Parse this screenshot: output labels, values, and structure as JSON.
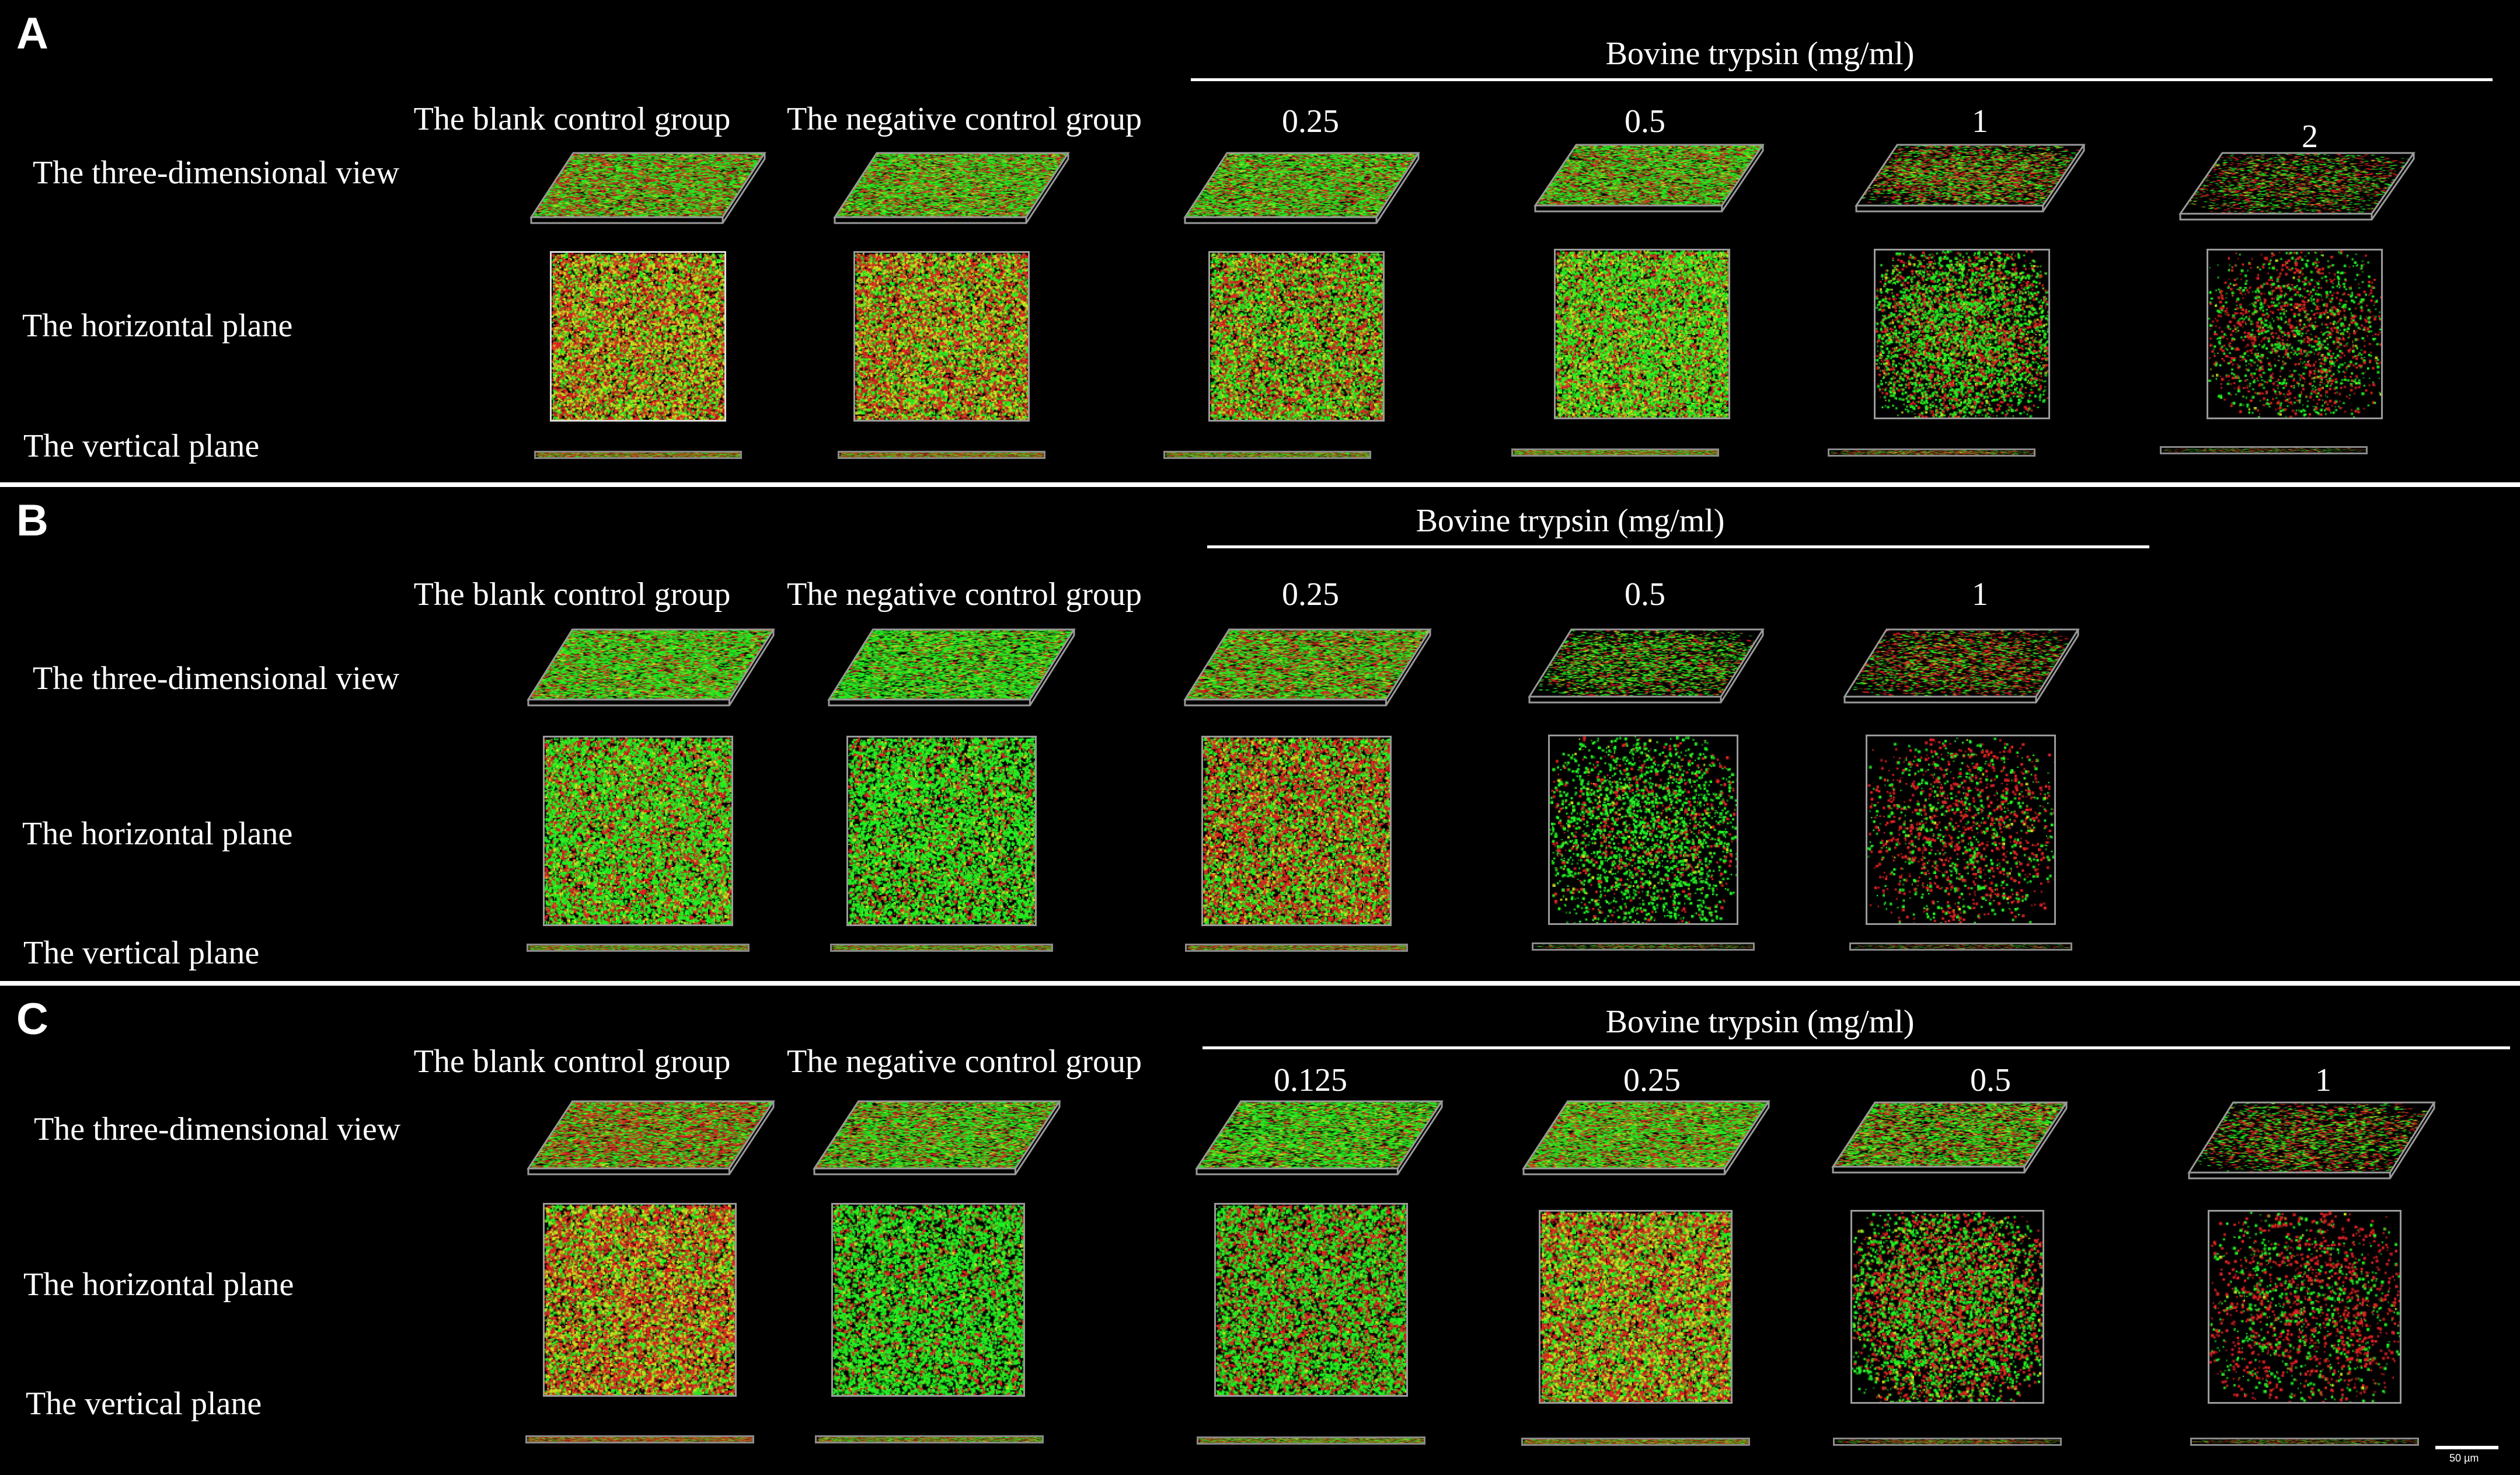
{
  "panels": [
    {
      "letter": "A",
      "header": "Bovine trypsin (mg/ml)",
      "col_blank": "The blank control group",
      "col_negative": "The negative control group",
      "concentrations": [
        "0.25",
        "0.5",
        "1",
        "2"
      ],
      "row_3d": "The three-dimensional view",
      "row_horizontal": "The horizontal plane",
      "row_vertical": "The vertical plane"
    },
    {
      "letter": "B",
      "header": "Bovine trypsin (mg/ml)",
      "col_blank": "The blank control group",
      "col_negative": "The negative control group",
      "concentrations": [
        "0.25",
        "0.5",
        "1"
      ],
      "row_3d": "The three-dimensional view",
      "row_horizontal": "The horizontal plane",
      "row_vertical": "The vertical plane"
    },
    {
      "letter": "C",
      "header": "Bovine trypsin (mg/ml)",
      "col_blank": "The blank control group",
      "col_negative": "The negative control group",
      "concentrations": [
        "0.125",
        "0.25",
        "0.5",
        "1"
      ],
      "row_3d": "The three-dimensional view",
      "row_horizontal": "The horizontal plane",
      "row_vertical": "The vertical plane",
      "scale_bar": "50 µm"
    }
  ],
  "colors": {
    "background": "#000000",
    "live_stain": "#22ee22",
    "dead_stain": "#dd2222",
    "mixed_stain": "#c8e020"
  }
}
